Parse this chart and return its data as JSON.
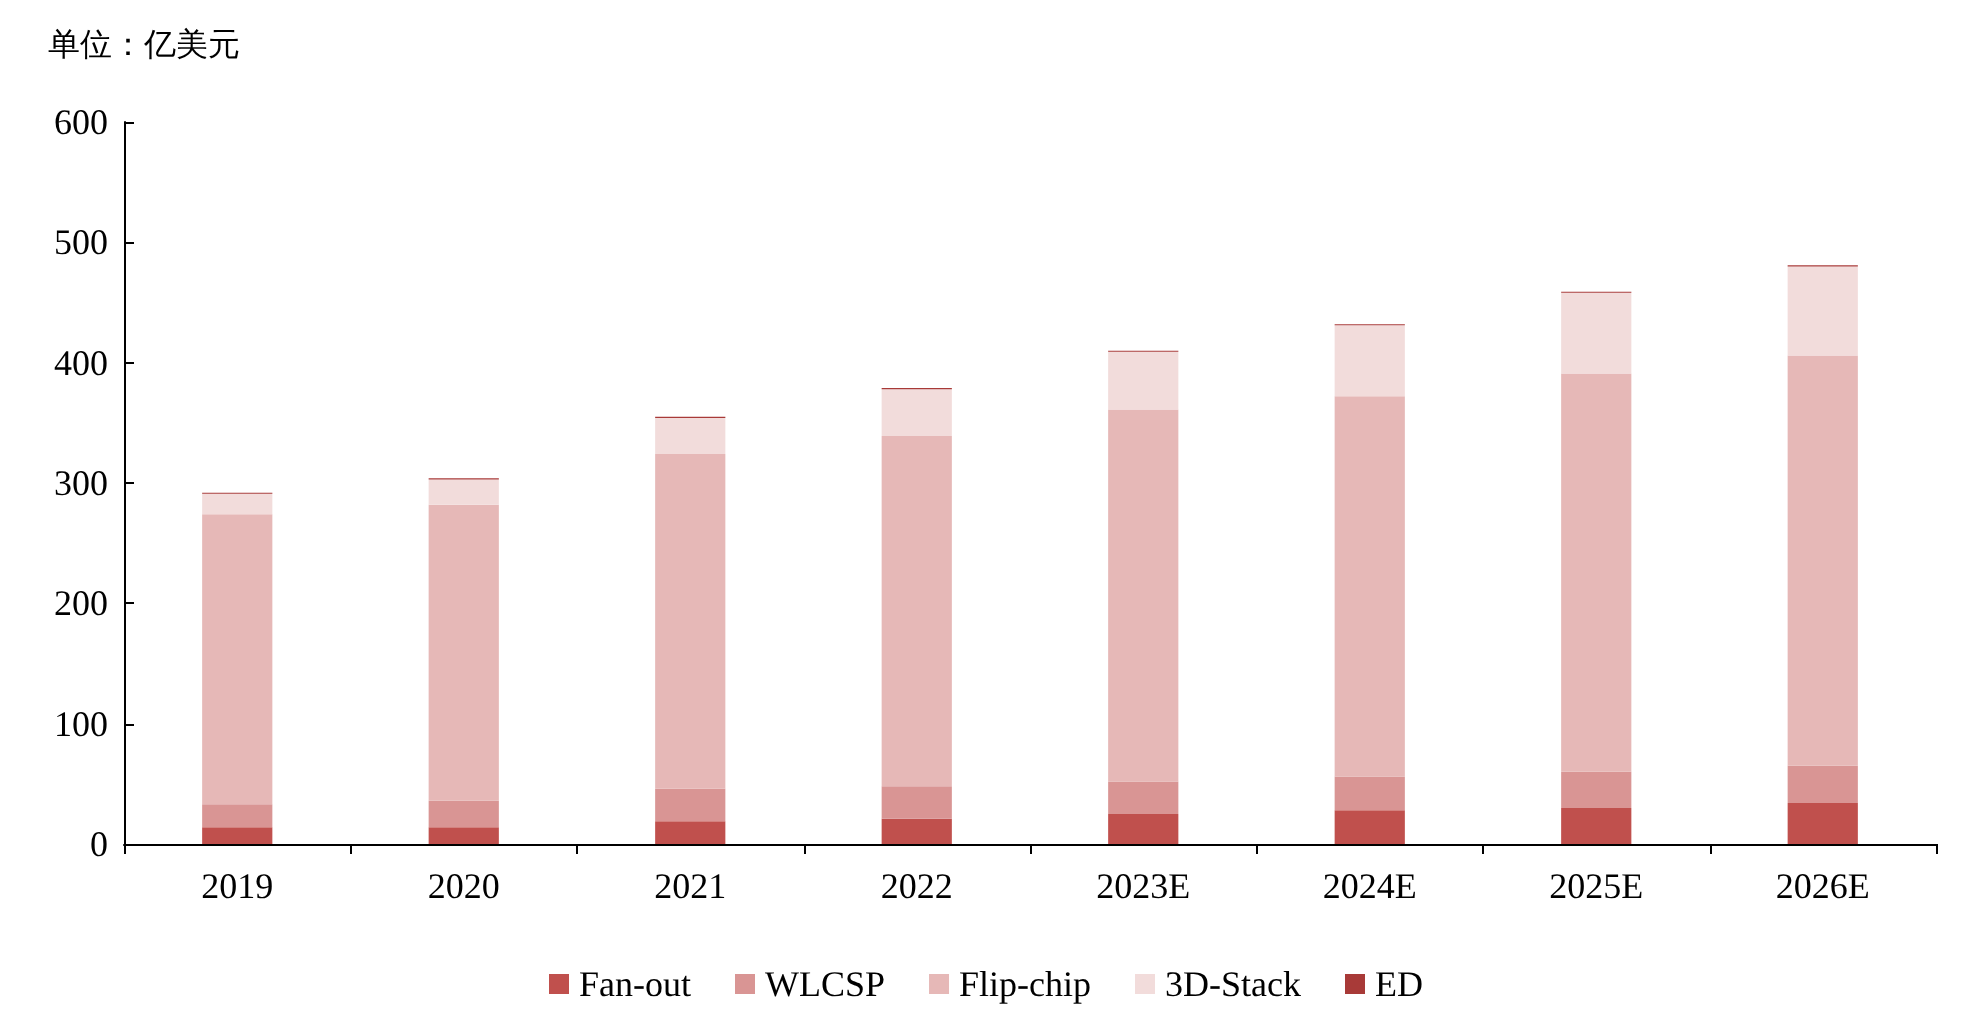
{
  "chart_data": {
    "type": "bar",
    "stacked": true,
    "ylabel": "单位：亿美元",
    "categories": [
      "2019",
      "2020",
      "2021",
      "2022",
      "2023E",
      "2024E",
      "2025E",
      "2026E"
    ],
    "series": [
      {
        "name": "Fan-out",
        "color": "#c0504d",
        "values": [
          14,
          14,
          19,
          21,
          25,
          28,
          30,
          34
        ]
      },
      {
        "name": "WLCSP",
        "color": "#d99594",
        "values": [
          19,
          22,
          27,
          27,
          27,
          28,
          30,
          31
        ]
      },
      {
        "name": "Flip-chip",
        "color": "#e6b8b7",
        "values": [
          241,
          246,
          278,
          291,
          309,
          316,
          331,
          341
        ]
      },
      {
        "name": "3D-Stack",
        "color": "#f2dcdb",
        "values": [
          17,
          21,
          30,
          39,
          48,
          59,
          67,
          74
        ]
      },
      {
        "name": "ED",
        "color": "#a83a38",
        "values": [
          1,
          1,
          1,
          1,
          1,
          1,
          1,
          1
        ]
      }
    ],
    "ylim": [
      0,
      600
    ],
    "yticks": [
      0,
      100,
      200,
      300,
      400,
      500,
      600
    ],
    "grid": false,
    "legend": "bottom"
  }
}
